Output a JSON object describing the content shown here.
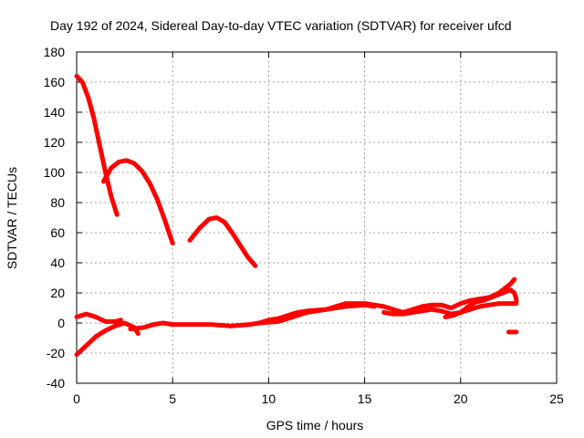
{
  "chart_data": {
    "type": "line",
    "title": "Day 192 of 2024, Sidereal Day-to-day VTEC variation (SDTVAR) for receiver ufcd",
    "xlabel": "GPS time / hours",
    "ylabel": "SDTVAR / TECUs",
    "xlim": [
      0,
      25
    ],
    "ylim": [
      -40,
      180
    ],
    "xticks": [
      "0",
      "5",
      "10",
      "15",
      "20",
      "25"
    ],
    "yticks": [
      "-40",
      "-20",
      "0",
      "20",
      "40",
      "60",
      "80",
      "100",
      "120",
      "140",
      "160",
      "180"
    ],
    "grid": true,
    "color": "#ff0000",
    "series": [
      {
        "name": "arc-1",
        "points": [
          [
            0,
            164
          ],
          [
            0.3,
            160
          ],
          [
            0.6,
            150
          ],
          [
            0.9,
            136
          ],
          [
            1.2,
            118
          ],
          [
            1.5,
            100
          ],
          [
            1.8,
            84
          ],
          [
            2.1,
            72
          ]
        ]
      },
      {
        "name": "arc-2",
        "points": [
          [
            1.4,
            94
          ],
          [
            1.8,
            103
          ],
          [
            2.2,
            107
          ],
          [
            2.6,
            108
          ],
          [
            3.0,
            106
          ],
          [
            3.4,
            101
          ],
          [
            3.8,
            93
          ],
          [
            4.2,
            82
          ],
          [
            4.6,
            68
          ],
          [
            5.0,
            53
          ]
        ]
      },
      {
        "name": "arc-3",
        "points": [
          [
            5.9,
            55
          ],
          [
            6.4,
            63
          ],
          [
            6.9,
            69
          ],
          [
            7.3,
            70
          ],
          [
            7.7,
            67
          ],
          [
            8.1,
            60
          ],
          [
            8.5,
            52
          ],
          [
            8.9,
            44
          ],
          [
            9.3,
            38
          ]
        ]
      },
      {
        "name": "arc-4",
        "points": [
          [
            0,
            -21
          ],
          [
            0.5,
            -15
          ],
          [
            1.0,
            -9
          ],
          [
            1.5,
            -5
          ],
          [
            2.0,
            -2
          ],
          [
            2.5,
            0
          ],
          [
            3.0,
            -3
          ],
          [
            3.2,
            -7
          ]
        ]
      },
      {
        "name": "arc-5",
        "points": [
          [
            0,
            4
          ],
          [
            0.5,
            6
          ],
          [
            1.0,
            4
          ],
          [
            1.5,
            1
          ],
          [
            2.0,
            1
          ],
          [
            2.3,
            2
          ]
        ]
      },
      {
        "name": "arc-6",
        "points": [
          [
            2.8,
            -4
          ],
          [
            3.5,
            -3
          ],
          [
            4.0,
            -1
          ],
          [
            4.5,
            0
          ],
          [
            5.0,
            -1
          ],
          [
            6.0,
            -1
          ],
          [
            7.0,
            -1
          ],
          [
            8.0,
            -2
          ],
          [
            9.0,
            -1
          ],
          [
            9.5,
            0
          ],
          [
            10.0,
            2
          ],
          [
            10.5,
            3
          ],
          [
            11.0,
            5
          ],
          [
            11.5,
            7
          ],
          [
            12.0,
            8
          ],
          [
            13.0,
            9
          ],
          [
            14.0,
            11
          ],
          [
            15.0,
            12
          ],
          [
            15.5,
            11
          ]
        ]
      },
      {
        "name": "arc-7",
        "points": [
          [
            9.5,
            0
          ],
          [
            10.5,
            1
          ],
          [
            11.0,
            3
          ],
          [
            11.5,
            5
          ],
          [
            12.0,
            7
          ],
          [
            12.5,
            8
          ],
          [
            13.0,
            9
          ],
          [
            13.5,
            11
          ],
          [
            14.0,
            13
          ],
          [
            14.5,
            13
          ],
          [
            15.0,
            13
          ],
          [
            15.5,
            12
          ]
        ]
      },
      {
        "name": "arc-8",
        "points": [
          [
            15.5,
            12
          ],
          [
            16.0,
            11
          ],
          [
            16.5,
            9
          ],
          [
            17.0,
            7
          ],
          [
            17.5,
            9
          ],
          [
            18.0,
            11
          ],
          [
            18.5,
            12
          ],
          [
            19.0,
            12
          ],
          [
            19.5,
            10
          ],
          [
            20.0,
            13
          ],
          [
            20.5,
            15
          ],
          [
            21.0,
            16
          ],
          [
            21.5,
            17
          ],
          [
            22.0,
            20
          ],
          [
            22.3,
            23
          ],
          [
            22.6,
            26
          ],
          [
            22.8,
            29
          ]
        ]
      },
      {
        "name": "arc-9",
        "points": [
          [
            16.0,
            7
          ],
          [
            16.5,
            6
          ],
          [
            17.0,
            6
          ],
          [
            17.5,
            7
          ],
          [
            18.0,
            8
          ],
          [
            18.5,
            9
          ],
          [
            19.0,
            8
          ],
          [
            19.5,
            6
          ],
          [
            20.0,
            7
          ],
          [
            20.5,
            9
          ],
          [
            21.0,
            11
          ],
          [
            21.5,
            12
          ],
          [
            22.0,
            13
          ],
          [
            22.5,
            13
          ],
          [
            22.8,
            13
          ]
        ]
      },
      {
        "name": "arc-10",
        "points": [
          [
            19.2,
            4
          ],
          [
            19.6,
            5
          ],
          [
            20.0,
            7
          ],
          [
            20.4,
            11
          ],
          [
            20.8,
            14
          ],
          [
            21.2,
            15
          ],
          [
            21.6,
            17
          ],
          [
            22.0,
            19
          ],
          [
            22.4,
            21
          ],
          [
            22.6,
            22
          ],
          [
            22.8,
            20
          ],
          [
            22.9,
            16
          ],
          [
            22.9,
            13
          ]
        ]
      },
      {
        "name": "arc-11",
        "points": [
          [
            22.5,
            -6
          ],
          [
            22.9,
            -6
          ]
        ]
      }
    ]
  }
}
